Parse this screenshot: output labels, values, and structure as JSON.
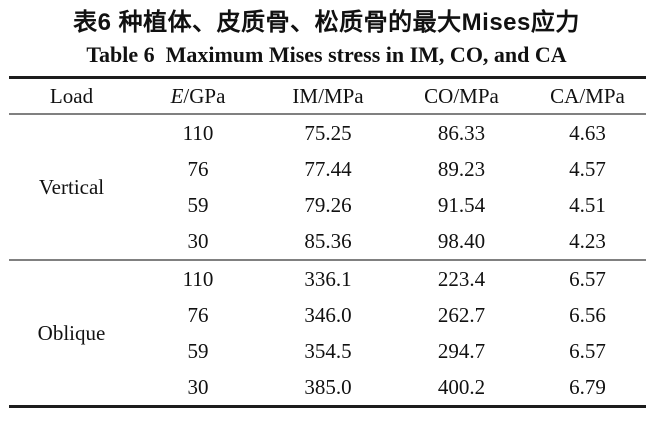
{
  "titles": {
    "zh": "表6 种植体、皮质骨、松质骨的最大Mises应力",
    "en": "Table 6  Maximum Mises stress in IM, CO, and CA"
  },
  "table": {
    "headers": {
      "load": "Load",
      "e_symbol": "E",
      "e_unit": "/GPa",
      "im": "IM/MPa",
      "co": "CO/MPa",
      "ca": "CA/MPa"
    },
    "sections": [
      {
        "load": "Vertical",
        "rows": [
          {
            "e": "110",
            "im": "75.25",
            "co": "86.33",
            "ca": "4.63"
          },
          {
            "e": "76",
            "im": "77.44",
            "co": "89.23",
            "ca": "4.57"
          },
          {
            "e": "59",
            "im": "79.26",
            "co": "91.54",
            "ca": "4.51"
          },
          {
            "e": "30",
            "im": "85.36",
            "co": "98.40",
            "ca": "4.23"
          }
        ]
      },
      {
        "load": "Oblique",
        "rows": [
          {
            "e": "110",
            "im": "336.1",
            "co": "223.4",
            "ca": "6.57"
          },
          {
            "e": "76",
            "im": "346.0",
            "co": "262.7",
            "ca": "6.56"
          },
          {
            "e": "59",
            "im": "354.5",
            "co": "294.7",
            "ca": "6.57"
          },
          {
            "e": "30",
            "im": "385.0",
            "co": "400.2",
            "ca": "6.79"
          }
        ]
      }
    ]
  }
}
